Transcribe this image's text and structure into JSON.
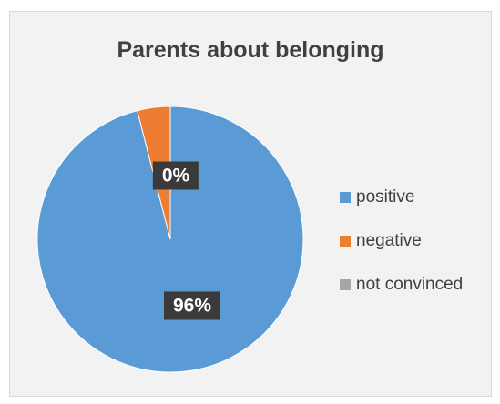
{
  "chart_data": {
    "type": "pie",
    "title": "Parents about belonging",
    "categories": [
      "positive",
      "negative",
      "not convinced"
    ],
    "values": [
      96,
      4,
      0
    ],
    "data_labels": [
      "96%",
      "",
      "0%"
    ],
    "colors": [
      "#5b9bd5",
      "#ed7d31",
      "#a5a5a5"
    ],
    "legend_position": "right"
  }
}
